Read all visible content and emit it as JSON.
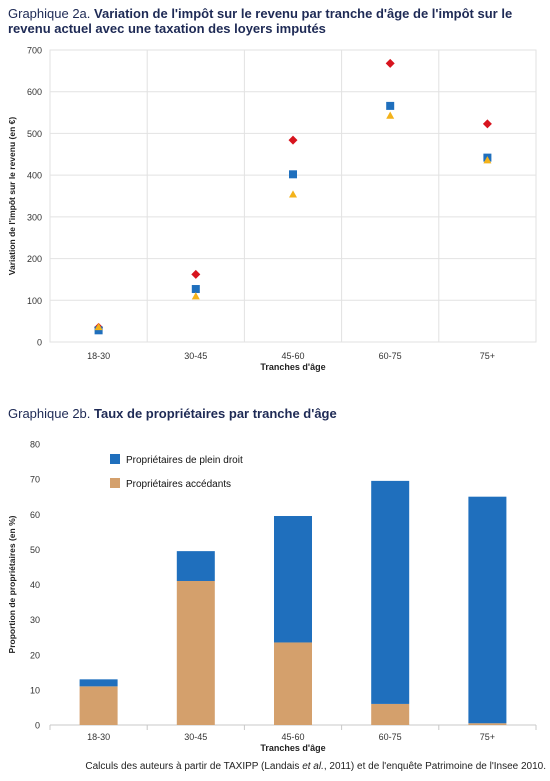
{
  "source": {
    "before": "Calculs des auteurs à partir de TAXIPP (Landais ",
    "italic": "et al.",
    "after": ", 2011) et de l'enquête Patrimoine de l'Insee 2010."
  },
  "chart_data": [
    {
      "type": "scatter",
      "title_prefix": "Graphique 2a. ",
      "title": "Variation de l'impôt sur le revenu par tranche d'âge de l'impôt sur le revenu actuel avec une taxation des loyers imputés",
      "xlabel": "Tranches d'âge",
      "ylabel": "Variation de l'impôt sur le revenu (en €)",
      "categories": [
        "18-30",
        "30-45",
        "45-60",
        "60-75",
        "75+"
      ],
      "yticks": [
        "0",
        "100",
        "200",
        "300",
        "400",
        "500",
        "600",
        "700"
      ],
      "ylim": [
        0,
        700
      ],
      "grid": true,
      "legend": "none",
      "series": [
        {
          "marker": "diamond",
          "color": "#d7141e",
          "values": [
            35,
            162,
            484,
            668,
            523
          ]
        },
        {
          "marker": "square",
          "color": "#1f6fbd",
          "values": [
            28,
            127,
            402,
            566,
            442
          ]
        },
        {
          "marker": "triangle",
          "color": "#f3b21a",
          "values": [
            36,
            110,
            354,
            543,
            436
          ]
        }
      ]
    },
    {
      "type": "bar",
      "stacked": true,
      "title_prefix": "Graphique 2b. ",
      "title": "Taux de propriétaires par tranche d'âge",
      "xlabel": "Tranches d'âge",
      "ylabel": "Proportion de propriétaires (en %)",
      "categories": [
        "18-30",
        "30-45",
        "45-60",
        "60-75",
        "75+"
      ],
      "yticks": [
        "0",
        "10",
        "20",
        "30",
        "40",
        "50",
        "60",
        "70",
        "80"
      ],
      "ylim": [
        0,
        80
      ],
      "grid": false,
      "legend": "top-left",
      "series": [
        {
          "name": "Propriétaires accédants",
          "color": "#d4a06c",
          "values": [
            11,
            41,
            23.5,
            6,
            0.5
          ]
        },
        {
          "name": "Propriétaires de plein droit",
          "color": "#1f6fbd",
          "values": [
            2,
            8.5,
            36,
            63.5,
            64.5
          ]
        }
      ]
    }
  ]
}
